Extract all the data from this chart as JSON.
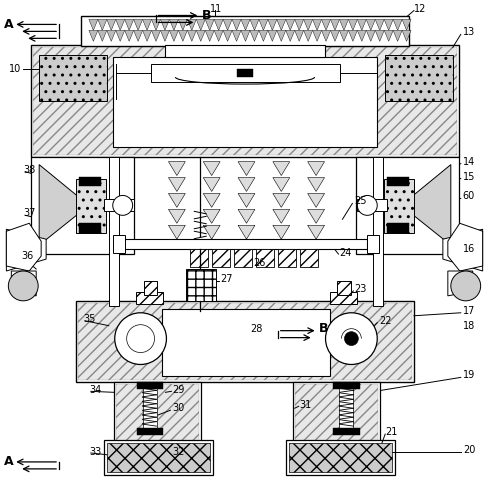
{
  "bg_color": "#ffffff",
  "line_color": "#000000",
  "fig_width": 4.89,
  "fig_height": 4.82,
  "dpi": 100,
  "labels": {
    "A_top": "A",
    "B_top": "B",
    "A_bot": "A",
    "B_mid": "B",
    "n10": "10",
    "n11": "11",
    "n12": "12",
    "n13": "13",
    "n14": "14",
    "n15": "15",
    "n16": "16",
    "n17": "17",
    "n18": "18",
    "n19": "19",
    "n20": "20",
    "n21": "21",
    "n22": "22",
    "n23": "23",
    "n24": "24",
    "n25": "25",
    "n26": "26",
    "n27": "27",
    "n28": "28",
    "n29": "29",
    "n30": "30",
    "n31": "31",
    "n32": "32",
    "n33": "33",
    "n34": "34",
    "n35": "35",
    "n36": "36",
    "n37": "37",
    "n38": "38",
    "n60": "60"
  }
}
